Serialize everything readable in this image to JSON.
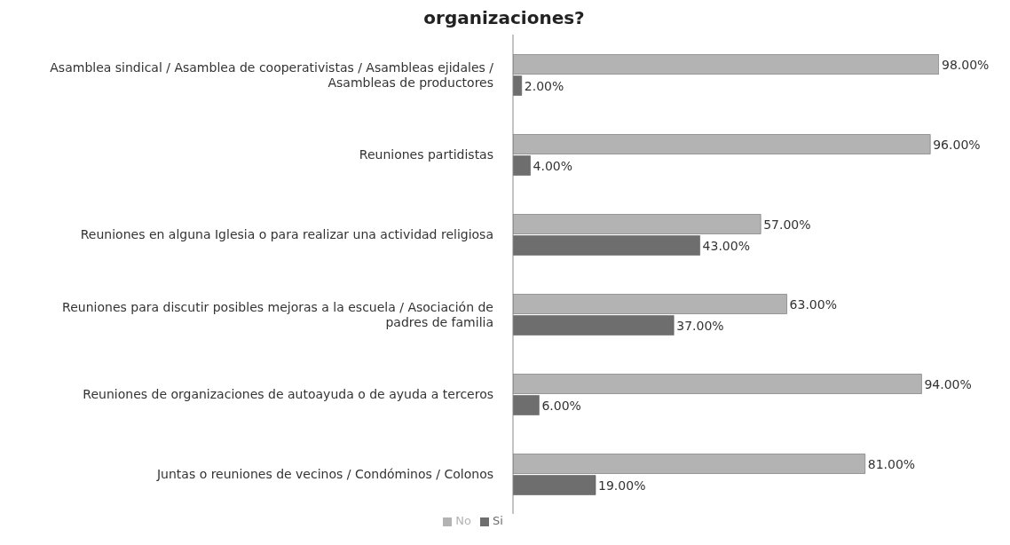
{
  "chart_data": {
    "type": "bar",
    "orientation": "horizontal",
    "title": "organizaciones?",
    "categories": [
      "Asamblea sindical / Asamblea de cooperativistas / Asambleas ejidales / Asambleas de productores",
      "Reuniones partidistas",
      "Reuniones en alguna Iglesia o para realizar una actividad religiosa",
      "Reuniones para discutir posibles mejoras a la escuela / Asociación de padres de familia",
      "Reuniones de organizaciones de autoayuda o de ayuda a terceros",
      "Juntas o reuniones de vecinos / Condóminos / Colonos"
    ],
    "series": [
      {
        "name": "No",
        "color": "#b3b3b3",
        "values": [
          98,
          96,
          57,
          63,
          94,
          81
        ],
        "value_labels": [
          "98.00%",
          "96.00%",
          "57.00%",
          "63.00%",
          "94.00%",
          "81.00%"
        ]
      },
      {
        "name": "Si",
        "color": "#6e6e6e",
        "values": [
          2,
          4,
          43,
          37,
          6,
          19
        ],
        "value_labels": [
          "2.00%",
          "4.00%",
          "43.00%",
          "37.00%",
          "6.00%",
          "19.00%"
        ]
      }
    ],
    "legend": "bottom",
    "grid": false
  }
}
